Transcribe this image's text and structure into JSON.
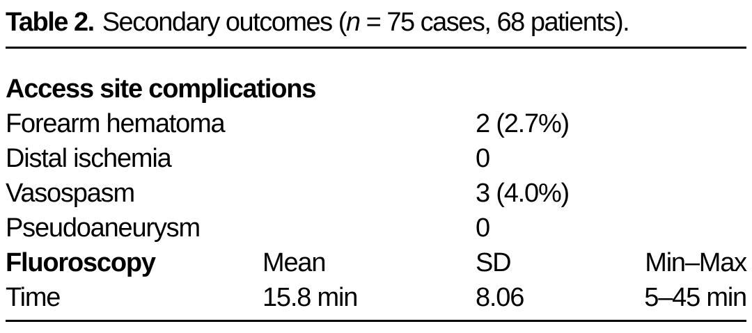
{
  "colors": {
    "background": "#ffffff",
    "text": "#000000",
    "rule": "#000000"
  },
  "title": {
    "label": "Table 2.",
    "pre_n": "Secondary outcomes (",
    "n_symbol": "n",
    "post_n": " = 75 cases, 68 patients)."
  },
  "table": {
    "rows": [
      {
        "label": "Access site complications",
        "col2": "",
        "col3": "",
        "col4": ""
      },
      {
        "label": "Forearm hematoma",
        "col2": "",
        "col3": "2 (2.7%)",
        "col4": ""
      },
      {
        "label": "Distal ischemia",
        "col2": "",
        "col3": "0",
        "col4": ""
      },
      {
        "label": "Vasospasm",
        "col2": "",
        "col3": "3 (4.0%)",
        "col4": ""
      },
      {
        "label": "Pseudoaneurysm",
        "col2": "",
        "col3": "0",
        "col4": ""
      },
      {
        "label": "Fluoroscopy",
        "col2": "Mean",
        "col3": "SD",
        "col4": "Min–Max"
      },
      {
        "label": "Time",
        "col2": "15.8 min",
        "col3": "8.06",
        "col4": "5–45 min"
      }
    ]
  }
}
